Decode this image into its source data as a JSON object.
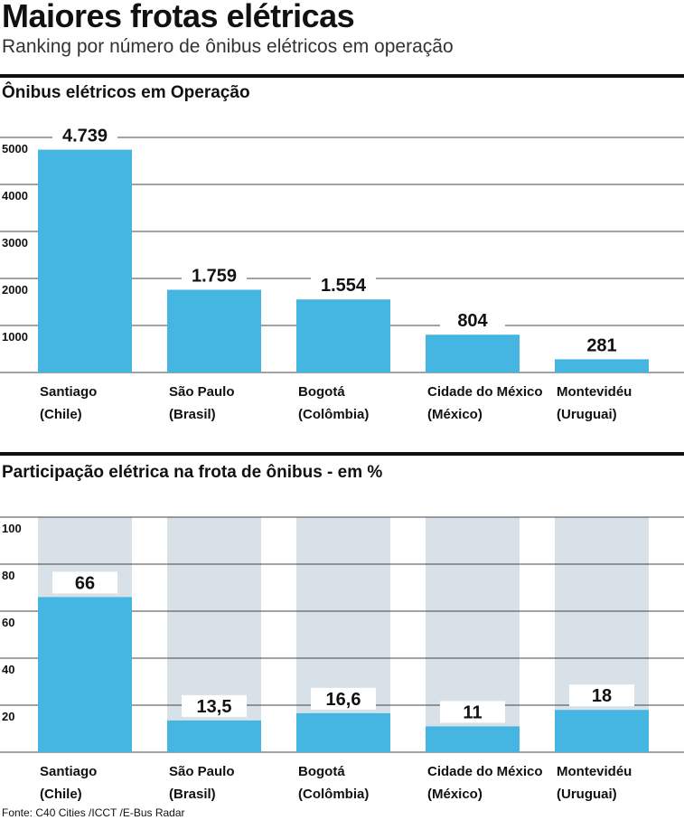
{
  "header": {
    "title": "Maiores frotas elétricas",
    "subtitle": "Ranking por número de ônibus elétricos em operação"
  },
  "colors": {
    "bar": "#45b6e2",
    "track": "#d9e1e8",
    "grid": "#444444",
    "rule": "#111111"
  },
  "chart_data": [
    {
      "type": "bar",
      "title": "Ônibus elétricos em Operação",
      "categories": [
        "Santiago (Chile)",
        "São Paulo (Brasil)",
        "Bogotá (Colômbia)",
        "Cidade do México (México)",
        "Montevidéu (Uruguai)"
      ],
      "category_lines": [
        [
          "Santiago",
          "(Chile)"
        ],
        [
          "São Paulo",
          "(Brasil)"
        ],
        [
          "Bogotá",
          "(Colômbia)"
        ],
        [
          "Cidade do México",
          "(México)"
        ],
        [
          "Montevidéu",
          "(Uruguai)"
        ]
      ],
      "values": [
        4739,
        1759,
        1554,
        804,
        281
      ],
      "value_labels": [
        "4.739",
        "1.759",
        "1.554",
        "804",
        "281"
      ],
      "yticks": [
        1000,
        2000,
        3000,
        4000,
        5000
      ],
      "ylim": [
        0,
        5000
      ],
      "grid": true
    },
    {
      "type": "bar",
      "title": "Participação elétrica na frota de ônibus - em %",
      "categories": [
        "Santiago (Chile)",
        "São Paulo (Brasil)",
        "Bogotá (Colômbia)",
        "Cidade do México (México)",
        "Montevidéu (Uruguai)"
      ],
      "category_lines": [
        [
          "Santiago",
          "(Chile)"
        ],
        [
          "São Paulo",
          "(Brasil)"
        ],
        [
          "Bogotá",
          "(Colômbia)"
        ],
        [
          "Cidade do México",
          "(México)"
        ],
        [
          "Montevidéu",
          "(Uruguai)"
        ]
      ],
      "values": [
        66,
        13.5,
        16.6,
        11,
        18
      ],
      "value_labels": [
        "66",
        "13,5",
        "16,6",
        "11",
        "18"
      ],
      "yticks": [
        20,
        40,
        60,
        80,
        100
      ],
      "ylim": [
        0,
        100
      ],
      "grid": true,
      "background_track_max": 100
    }
  ],
  "source": "Fonte:  C40 Cities /ICCT /E-Bus Radar"
}
